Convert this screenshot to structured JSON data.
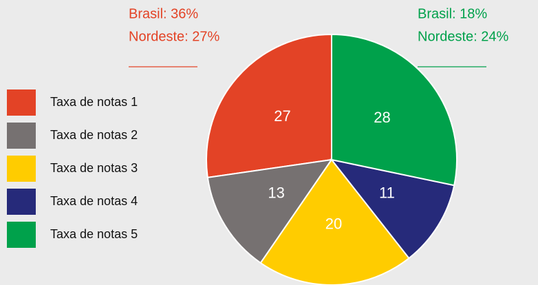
{
  "chart_data": {
    "type": "pie",
    "categories": [
      "Taxa de notas 1",
      "Taxa de notas 2",
      "Taxa de notas 3",
      "Taxa de notas 4",
      "Taxa de notas 5"
    ],
    "values": [
      27,
      13,
      20,
      11,
      28
    ],
    "colors": [
      "#e34326",
      "#767171",
      "#ffcc00",
      "#262a7a",
      "#00a14b"
    ],
    "direction": "counterclockwise",
    "annotations": [
      {
        "lines": [
          "Brasil: 36%",
          "Nordeste: 27%"
        ],
        "color": "#e34326"
      },
      {
        "lines": [
          "Brasil: 18%",
          "Nordeste: 24%"
        ],
        "color": "#00a14b"
      }
    ]
  }
}
